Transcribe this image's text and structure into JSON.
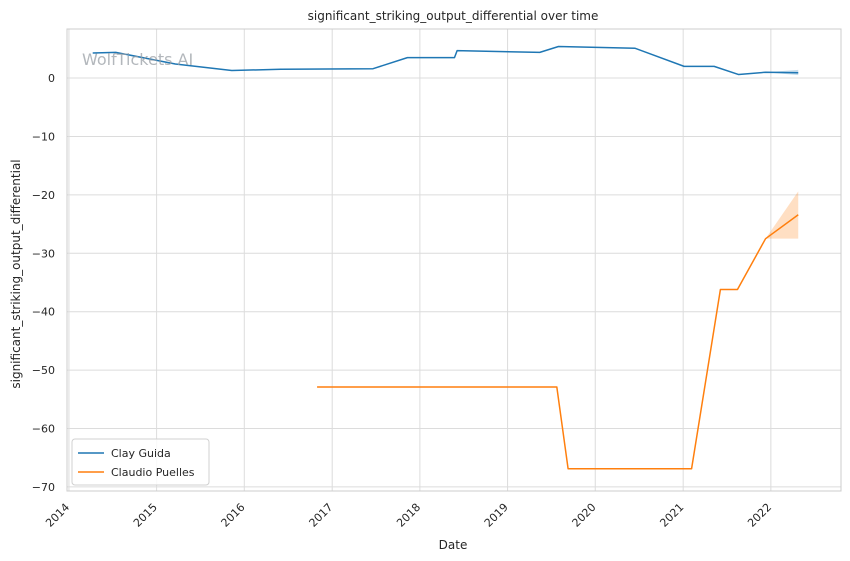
{
  "chart_data": {
    "type": "line",
    "title": "significant_striking_output_differential over time",
    "xlabel": "Date",
    "ylabel": "significant_striking_output_differential",
    "watermark": "WolfTickets AI",
    "x_ticks": [
      "2014",
      "2015",
      "2016",
      "2017",
      "2018",
      "2019",
      "2020",
      "2021",
      "2022"
    ],
    "y_ticks": [
      0,
      -10,
      -20,
      -30,
      -40,
      -50,
      -60,
      -70
    ],
    "xlim": [
      "2013-12-24",
      "2022-10-20"
    ],
    "ylim": [
      -70.7,
      8.4
    ],
    "grid": true,
    "legend_position": "lower-left",
    "series": [
      {
        "name": "Clay Guida",
        "color": "#1f77b4",
        "points": [
          [
            "2014-04-10",
            4.3
          ],
          [
            "2014-07-15",
            4.4
          ],
          [
            "2015-03-20",
            2.4
          ],
          [
            "2015-11-10",
            1.3
          ],
          [
            "2016-06-01",
            1.5
          ],
          [
            "2017-06-20",
            1.6
          ],
          [
            "2017-11-10",
            3.5
          ],
          [
            "2018-05-25",
            3.5
          ],
          [
            "2018-06-05",
            4.7
          ],
          [
            "2019-05-15",
            4.4
          ],
          [
            "2019-08-01",
            5.4
          ],
          [
            "2020-06-15",
            5.1
          ],
          [
            "2021-01-05",
            2.0
          ],
          [
            "2021-05-10",
            2.0
          ],
          [
            "2021-08-20",
            0.6
          ],
          [
            "2021-12-10",
            1.0
          ],
          [
            "2022-04-25",
            0.9
          ]
        ],
        "ci": [
          [
            "2021-12-10",
            1.0,
            1.0
          ],
          [
            "2022-04-25",
            0.5,
            1.4
          ]
        ]
      },
      {
        "name": "Claudio Puelles",
        "color": "#ff7f0e",
        "points": [
          [
            "2016-10-30",
            -52.9
          ],
          [
            "2019-07-25",
            -52.9
          ],
          [
            "2019-09-10",
            -66.9
          ],
          [
            "2021-02-05",
            -66.9
          ],
          [
            "2021-06-05",
            -36.2
          ],
          [
            "2021-08-15",
            -36.2
          ],
          [
            "2021-12-10",
            -27.5
          ],
          [
            "2022-04-25",
            -23.4
          ]
        ],
        "ci": [
          [
            "2021-12-10",
            -27.5,
            -27.5
          ],
          [
            "2022-04-25",
            -27.5,
            -19.4
          ]
        ]
      }
    ]
  }
}
